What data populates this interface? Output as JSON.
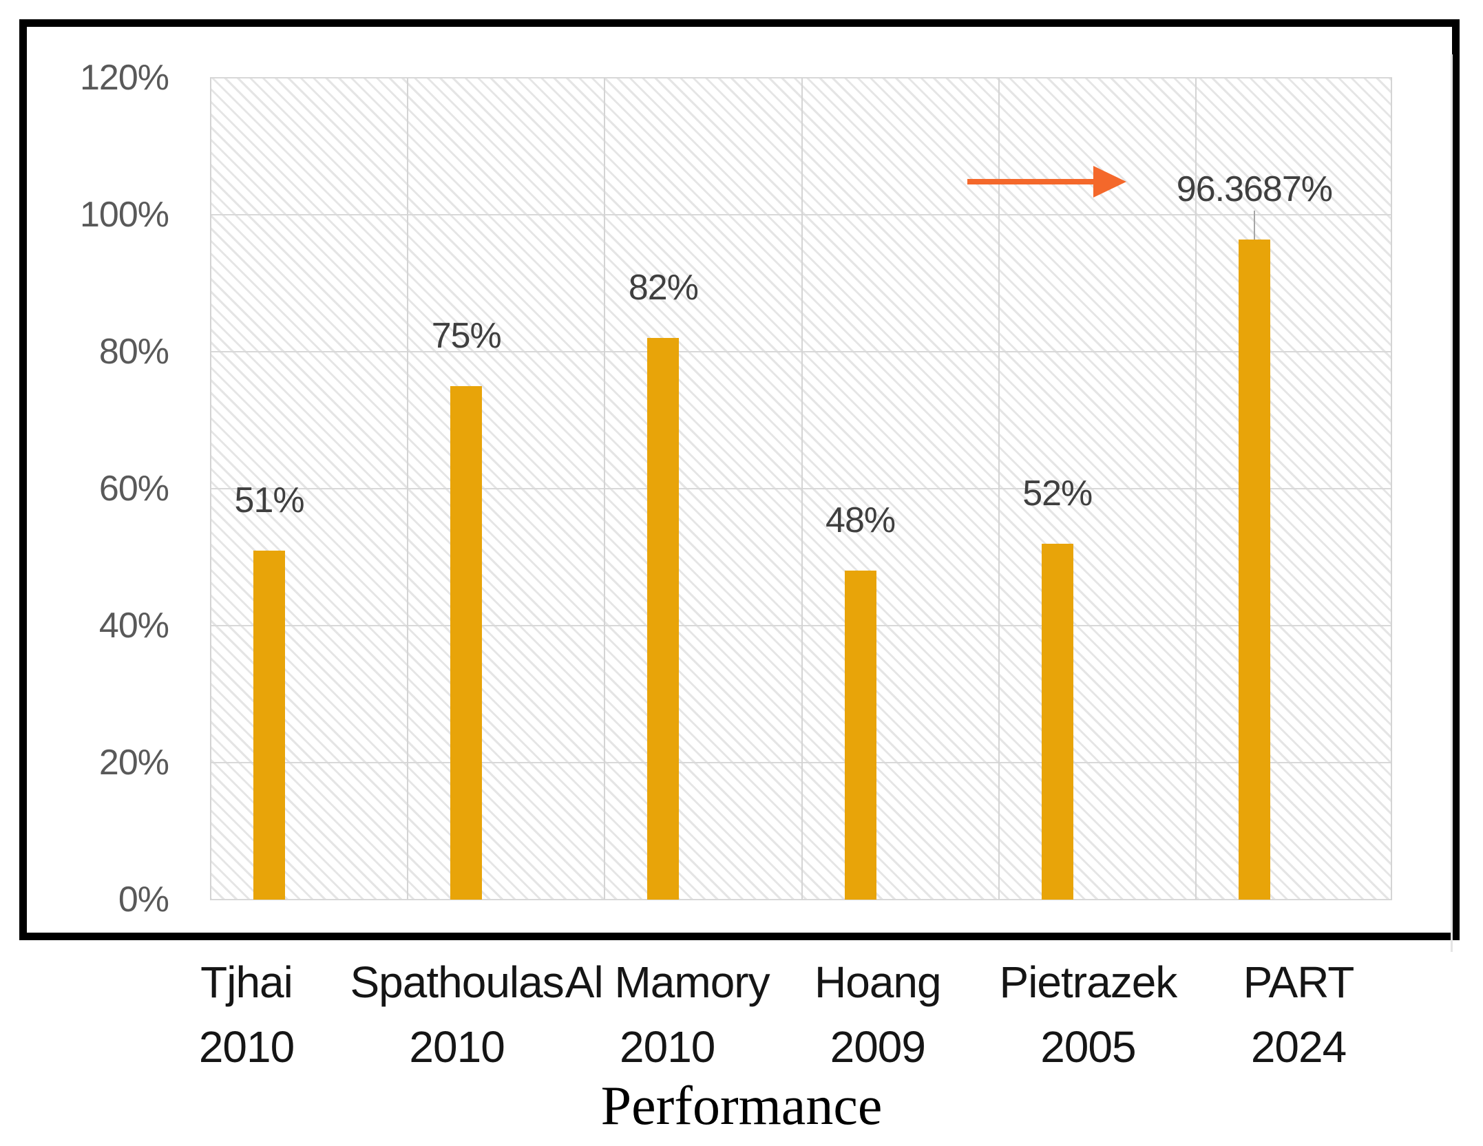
{
  "chart_data": {
    "type": "bar",
    "title": "",
    "xlabel": "Performance",
    "ylabel": "",
    "ylim": [
      0,
      120
    ],
    "grid": true,
    "legend_position": "none",
    "plot_background": "diagonal-hatch",
    "bar_color": "#E8A409",
    "yticks": [
      {
        "value": 120,
        "label": "120%"
      },
      {
        "value": 100,
        "label": "100%"
      },
      {
        "value": 80,
        "label": "80%"
      },
      {
        "value": 60,
        "label": "60%"
      },
      {
        "value": 40,
        "label": "40%"
      },
      {
        "value": 20,
        "label": "20%"
      },
      {
        "value": 0,
        "label": "0%"
      }
    ],
    "categories": [
      {
        "name": "Tjhai",
        "year": "2010"
      },
      {
        "name": "Spathoulas",
        "year": "2010"
      },
      {
        "name": "Al Mamory",
        "year": "2010"
      },
      {
        "name": "Hoang",
        "year": "2009"
      },
      {
        "name": "Pietrazek",
        "year": "2005"
      },
      {
        "name": "PART",
        "year": "2024"
      }
    ],
    "series": [
      {
        "name": "Performance",
        "values": [
          51,
          75,
          82,
          48,
          52,
          96.3687
        ],
        "value_labels": [
          "51%",
          "75%",
          "82%",
          "48%",
          "52%",
          "96.3687%"
        ]
      }
    ],
    "callout_index": 5,
    "annotations": [
      {
        "type": "arrow",
        "direction": "right",
        "color": "#F4682B",
        "points_to": "96.3687%"
      }
    ]
  }
}
